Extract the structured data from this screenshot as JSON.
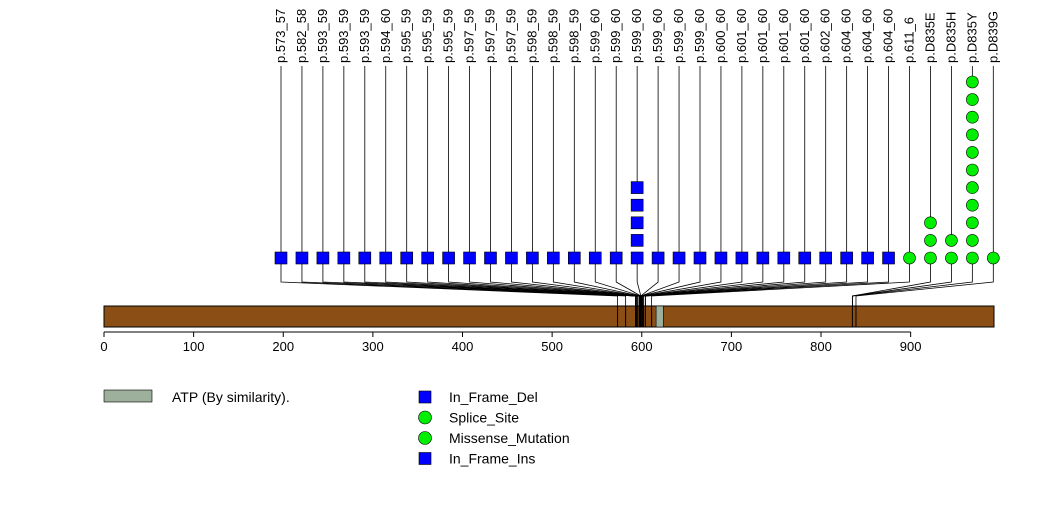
{
  "chart_data": {
    "type": "lollipop",
    "axis": {
      "min": 0,
      "max": 993,
      "ticks": [
        0,
        100,
        200,
        300,
        400,
        500,
        600,
        700,
        800,
        900
      ],
      "tick_labels": [
        "0",
        "100",
        "200",
        "300",
        "400",
        "500",
        "600",
        "700",
        "800",
        "900"
      ]
    },
    "protein_bar_color": "#8b4f16",
    "domains": [
      {
        "name": "ATP (By similarity).",
        "start": 616,
        "end": 624,
        "color": "#9db09b"
      }
    ],
    "mutation_ticks": [
      573,
      582,
      593,
      594,
      595,
      597,
      598,
      599,
      600,
      601,
      602,
      604,
      611,
      835,
      839
    ],
    "lollipops": [
      {
        "label": "p.573_57",
        "pos": 573,
        "count": 1,
        "type": "In_Frame_Del"
      },
      {
        "label": "p.582_58",
        "pos": 582,
        "count": 1,
        "type": "In_Frame_Del"
      },
      {
        "label": "p.593_59",
        "pos": 593,
        "count": 1,
        "type": "In_Frame_Del"
      },
      {
        "label": "p.593_59",
        "pos": 593,
        "count": 1,
        "type": "In_Frame_Del"
      },
      {
        "label": "p.593_59",
        "pos": 593,
        "count": 1,
        "type": "In_Frame_Del"
      },
      {
        "label": "p.594_60",
        "pos": 594,
        "count": 1,
        "type": "In_Frame_Del"
      },
      {
        "label": "p.595_59",
        "pos": 595,
        "count": 1,
        "type": "In_Frame_Del"
      },
      {
        "label": "p.595_59",
        "pos": 595,
        "count": 1,
        "type": "In_Frame_Del"
      },
      {
        "label": "p.595_59",
        "pos": 595,
        "count": 1,
        "type": "In_Frame_Del"
      },
      {
        "label": "p.597_59",
        "pos": 597,
        "count": 1,
        "type": "In_Frame_Del"
      },
      {
        "label": "p.597_59",
        "pos": 597,
        "count": 1,
        "type": "In_Frame_Del"
      },
      {
        "label": "p.597_59",
        "pos": 597,
        "count": 1,
        "type": "In_Frame_Del"
      },
      {
        "label": "p.598_59",
        "pos": 598,
        "count": 1,
        "type": "In_Frame_Del"
      },
      {
        "label": "p.598_59",
        "pos": 598,
        "count": 1,
        "type": "In_Frame_Del"
      },
      {
        "label": "p.598_59",
        "pos": 598,
        "count": 1,
        "type": "In_Frame_Del"
      },
      {
        "label": "p.599_60",
        "pos": 599,
        "count": 1,
        "type": "In_Frame_Del"
      },
      {
        "label": "p.599_60",
        "pos": 599,
        "count": 1,
        "type": "In_Frame_Del"
      },
      {
        "label": "p.599_60",
        "pos": 599,
        "count": 5,
        "type": "In_Frame_Del"
      },
      {
        "label": "p.599_60",
        "pos": 599,
        "count": 1,
        "type": "In_Frame_Del"
      },
      {
        "label": "p.599_60",
        "pos": 599,
        "count": 1,
        "type": "In_Frame_Del"
      },
      {
        "label": "p.599_60",
        "pos": 599,
        "count": 1,
        "type": "In_Frame_Del"
      },
      {
        "label": "p.600_60",
        "pos": 600,
        "count": 1,
        "type": "In_Frame_Del"
      },
      {
        "label": "p.601_60",
        "pos": 601,
        "count": 1,
        "type": "In_Frame_Del"
      },
      {
        "label": "p.601_60",
        "pos": 601,
        "count": 1,
        "type": "In_Frame_Del"
      },
      {
        "label": "p.601_60",
        "pos": 601,
        "count": 1,
        "type": "In_Frame_Del"
      },
      {
        "label": "p.601_60",
        "pos": 601,
        "count": 1,
        "type": "In_Frame_Del"
      },
      {
        "label": "p.602_60",
        "pos": 602,
        "count": 1,
        "type": "In_Frame_Del"
      },
      {
        "label": "p.604_60",
        "pos": 604,
        "count": 1,
        "type": "In_Frame_Del"
      },
      {
        "label": "p.604_60",
        "pos": 604,
        "count": 1,
        "type": "In_Frame_Del"
      },
      {
        "label": "p.604_60",
        "pos": 604,
        "count": 1,
        "type": "In_Frame_Del"
      },
      {
        "label": "p.611_6",
        "pos": 611,
        "count": 1,
        "type": "Splice_Site"
      },
      {
        "label": "p.D835E",
        "pos": 835,
        "count": 3,
        "type": "Missense_Mutation"
      },
      {
        "label": "p.D835H",
        "pos": 835,
        "count": 2,
        "type": "Missense_Mutation"
      },
      {
        "label": "p.D835Y",
        "pos": 835,
        "count": 11,
        "type": "Missense_Mutation"
      },
      {
        "label": "p.D839G",
        "pos": 839,
        "count": 1,
        "type": "Missense_Mutation"
      }
    ],
    "legend": [
      {
        "label": "In_Frame_Del",
        "shape": "square",
        "color": "#0000ff"
      },
      {
        "label": "Splice_Site",
        "shape": "circle",
        "color": "#00ee00"
      },
      {
        "label": "Missense_Mutation",
        "shape": "circle",
        "color": "#00ee00"
      },
      {
        "label": "In_Frame_Ins",
        "shape": "square",
        "color": "#0000ff"
      }
    ],
    "domain_legend_label": "ATP (By similarity)."
  }
}
